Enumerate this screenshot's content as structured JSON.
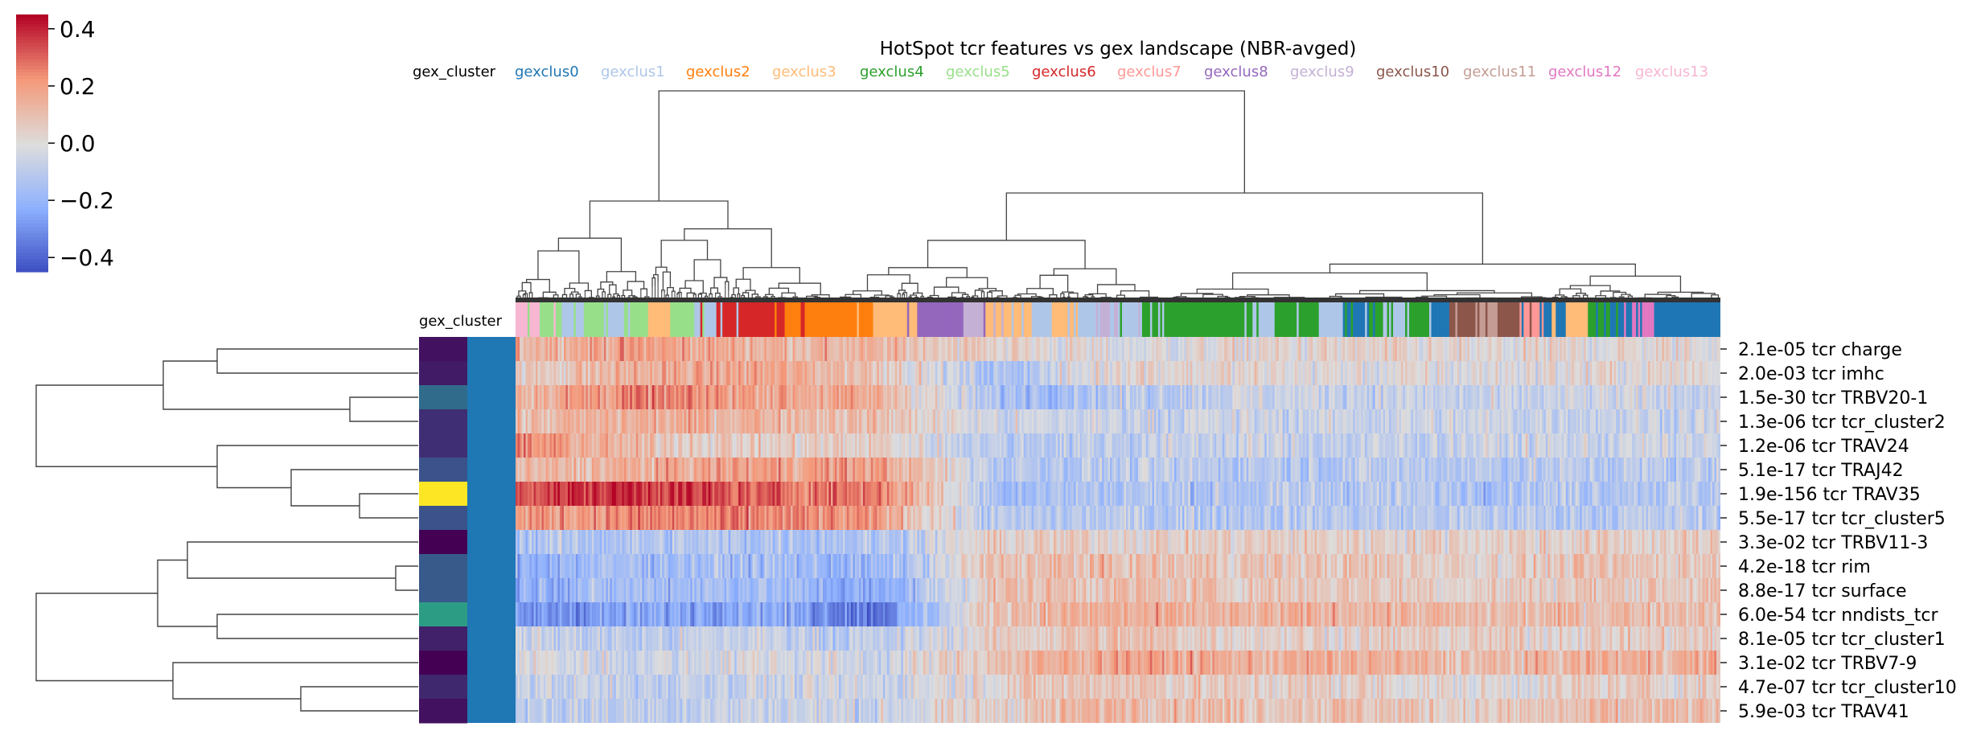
{
  "chart_data": {
    "type": "heatmap",
    "title": "HotSpot tcr features vs gex landscape (NBR-avged)",
    "colorbar": {
      "colormap": "coolwarm",
      "vmin": -0.45,
      "vmax": 0.45,
      "ticks": [
        {
          "value": 0.4,
          "label": "0.4"
        },
        {
          "value": 0.2,
          "label": "0.2"
        },
        {
          "value": 0.0,
          "label": "0.0"
        },
        {
          "value": -0.2,
          "label": "−0.2"
        },
        {
          "value": -0.4,
          "label": "−0.4"
        }
      ]
    },
    "col_annotation": {
      "label": "gex_cluster",
      "legend": [
        {
          "name": "gexclus0",
          "color": "#1f77b4"
        },
        {
          "name": "gexclus1",
          "color": "#aec7e8"
        },
        {
          "name": "gexclus2",
          "color": "#ff7f0e"
        },
        {
          "name": "gexclus3",
          "color": "#ffbb78"
        },
        {
          "name": "gexclus4",
          "color": "#2ca02c"
        },
        {
          "name": "gexclus5",
          "color": "#98df8a"
        },
        {
          "name": "gexclus6",
          "color": "#d62728"
        },
        {
          "name": "gexclus7",
          "color": "#ff9896"
        },
        {
          "name": "gexclus8",
          "color": "#9467bd"
        },
        {
          "name": "gexclus9",
          "color": "#c5b0d5"
        },
        {
          "name": "gexclus10",
          "color": "#8c564b"
        },
        {
          "name": "gexclus11",
          "color": "#c49c94"
        },
        {
          "name": "gexclus12",
          "color": "#e377c2"
        },
        {
          "name": "gexclus13",
          "color": "#f7b6d2"
        }
      ]
    },
    "row_annotation": {
      "label": "gex_cluster",
      "viridis_values": [
        0.05,
        0.08,
        0.35,
        0.14,
        0.14,
        0.25,
        1.0,
        0.25,
        0.0,
        0.28,
        0.28,
        0.55,
        0.1,
        0.0,
        0.12,
        0.05
      ]
    },
    "rows": [
      {
        "label": "2.1e-05 tcr charge",
        "pattern": [
          0.15,
          0.2,
          0.15,
          0.12,
          0.05,
          -0.02,
          0.02,
          0.03,
          0.0,
          0.02
        ]
      },
      {
        "label": "2.0e-03 tcr imhc",
        "pattern": [
          0.05,
          0.15,
          0.18,
          0.1,
          -0.15,
          0.05,
          0.02,
          0.0,
          0.0,
          0.02
        ]
      },
      {
        "label": "1.5e-30 tcr TRBV20-1",
        "pattern": [
          0.15,
          0.25,
          0.2,
          0.15,
          -0.15,
          -0.1,
          -0.05,
          -0.05,
          -0.08,
          -0.05
        ]
      },
      {
        "label": "1.3e-06 tcr tcr_cluster2",
        "pattern": [
          0.1,
          0.15,
          0.15,
          0.1,
          -0.05,
          -0.05,
          -0.05,
          -0.05,
          -0.05,
          -0.05
        ]
      },
      {
        "label": "1.2e-06 tcr TRAV24",
        "pattern": [
          0.25,
          0.1,
          0.05,
          0.05,
          -0.1,
          -0.08,
          -0.05,
          -0.08,
          -0.05,
          -0.05
        ]
      },
      {
        "label": "5.1e-17 tcr TRAJ42",
        "pattern": [
          0.1,
          0.15,
          0.2,
          0.2,
          -0.1,
          -0.1,
          -0.1,
          -0.1,
          -0.1,
          -0.1
        ]
      },
      {
        "label": "1.9e-156 tcr TRAV35",
        "pattern": [
          0.35,
          0.4,
          0.3,
          0.28,
          -0.15,
          -0.12,
          -0.12,
          -0.1,
          -0.12,
          -0.1
        ]
      },
      {
        "label": "5.5e-17 tcr tcr_cluster5",
        "pattern": [
          0.2,
          0.25,
          0.25,
          0.2,
          -0.12,
          -0.1,
          -0.1,
          -0.1,
          -0.1,
          -0.1
        ]
      },
      {
        "label": "3.3e-02 tcr TRBV11-3",
        "pattern": [
          -0.12,
          -0.12,
          -0.12,
          -0.12,
          0.05,
          0.05,
          0.05,
          0.05,
          0.05,
          0.05
        ]
      },
      {
        "label": "4.2e-18 tcr rim",
        "pattern": [
          -0.2,
          -0.15,
          -0.15,
          -0.2,
          0.1,
          0.1,
          0.08,
          0.08,
          0.05,
          0.08
        ]
      },
      {
        "label": "8.8e-17 tcr surface",
        "pattern": [
          -0.2,
          -0.15,
          -0.15,
          -0.25,
          0.1,
          0.1,
          0.08,
          0.08,
          0.05,
          0.08
        ]
      },
      {
        "label": "6.0e-54 tcr nndists_tcr",
        "pattern": [
          -0.3,
          -0.25,
          -0.2,
          -0.35,
          0.12,
          0.15,
          0.12,
          0.15,
          0.1,
          0.12
        ]
      },
      {
        "label": "8.1e-05 tcr tcr_cluster1",
        "pattern": [
          -0.05,
          -0.1,
          -0.05,
          -0.1,
          0.05,
          0.1,
          0.05,
          0.05,
          0.05,
          0.05
        ]
      },
      {
        "label": "3.1e-02 tcr TRBV7-9",
        "pattern": [
          0.0,
          -0.05,
          0.0,
          -0.05,
          0.1,
          0.2,
          0.15,
          0.15,
          0.1,
          0.15
        ]
      },
      {
        "label": "4.7e-07 tcr tcr_cluster10",
        "pattern": [
          -0.05,
          -0.08,
          -0.05,
          -0.05,
          0.05,
          0.1,
          0.05,
          0.05,
          0.0,
          0.05
        ]
      },
      {
        "label": "5.9e-03 tcr TRAV41",
        "pattern": [
          -0.08,
          -0.08,
          -0.05,
          -0.05,
          0.05,
          0.15,
          0.1,
          0.1,
          0.05,
          0.1
        ]
      }
    ],
    "n_columns": 600,
    "col_cluster_sequence": [
      13,
      5,
      1,
      5,
      1,
      5,
      3,
      5,
      1,
      6,
      6,
      6,
      2,
      2,
      2,
      2,
      3,
      3,
      8,
      8,
      9,
      3,
      3,
      1,
      3,
      1,
      9,
      1,
      4,
      4,
      4,
      4,
      4,
      1,
      4,
      4,
      1,
      0,
      4,
      1,
      4,
      0,
      10,
      11,
      10,
      7,
      0,
      3,
      4,
      0,
      12,
      0,
      0,
      0
    ],
    "row_dendrogram": "((((charge,imhc),(TRBV20-1,tcr_cluster2)),(TRAV24,(TRAJ42,(TRAV35,tcr_cluster5)))),((TRBV11-3,(rim,surface)),(nndists_tcr,tcr_cluster1)),(TRBV7-9,(tcr_cluster10,TRAV41)))"
  }
}
